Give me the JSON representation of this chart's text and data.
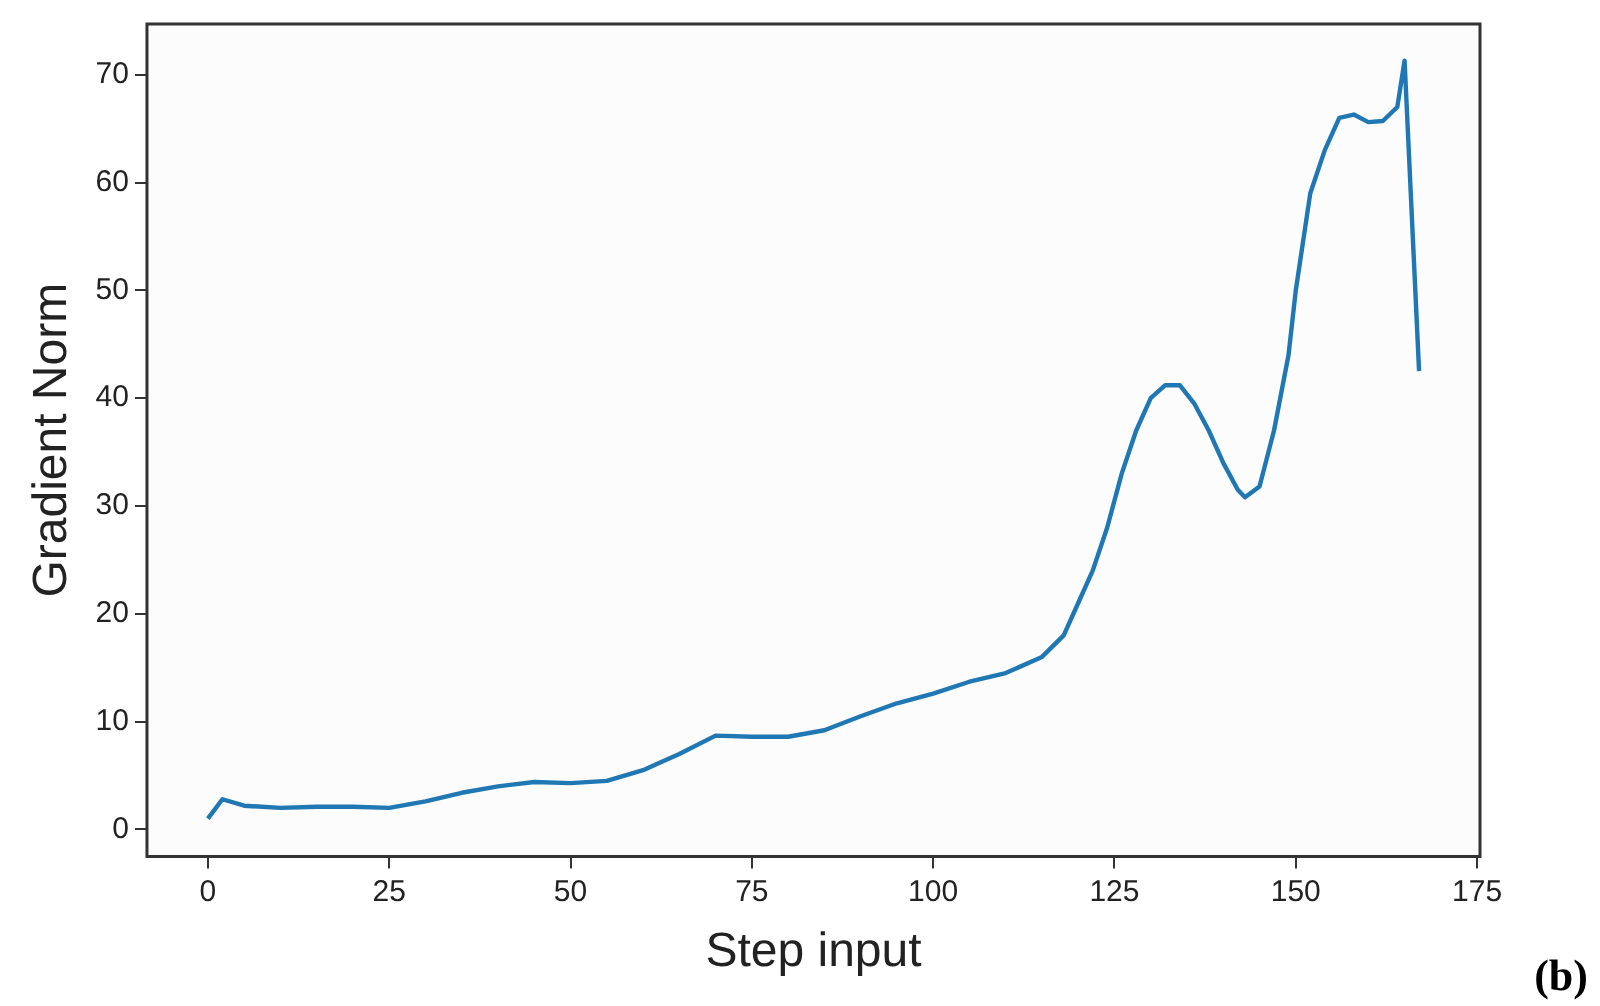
{
  "chart_data": {
    "type": "line",
    "xlabel": "Step input",
    "ylabel": "Gradient Norm",
    "annotations": [
      "(b)"
    ],
    "x": [
      0,
      2,
      5,
      10,
      15,
      20,
      25,
      30,
      35,
      40,
      45,
      50,
      55,
      60,
      65,
      70,
      75,
      80,
      85,
      90,
      95,
      100,
      105,
      110,
      115,
      118,
      120,
      122,
      124,
      126,
      128,
      130,
      132,
      134,
      136,
      138,
      140,
      142,
      143,
      145,
      147,
      149,
      150,
      152,
      154,
      156,
      158,
      160,
      162,
      164,
      165,
      167
    ],
    "series": [
      {
        "color": "#1f77b4",
        "values": [
          1,
          2.8,
          2.2,
          2.0,
          2.1,
          2.1,
          2.0,
          2.6,
          3.4,
          4.0,
          4.4,
          4.3,
          4.5,
          5.5,
          7.0,
          8.7,
          8.6,
          8.6,
          9.2,
          10.5,
          11.7,
          12.6,
          13.7,
          14.5,
          16,
          18,
          21,
          24,
          28,
          33,
          37,
          40,
          41.2,
          41.2,
          39.5,
          37,
          34,
          31.5,
          30.8,
          31.8,
          37,
          44,
          50,
          59,
          63,
          66,
          66.3,
          65.6,
          65.7,
          67,
          71.3,
          42.5
        ]
      }
    ],
    "xlim": [
      -8.4,
      175.4
    ],
    "ylim": [
      -2.5,
      74.7
    ],
    "xticks": [
      0,
      25,
      50,
      75,
      100,
      125,
      150,
      175
    ],
    "yticks": [
      0,
      10,
      20,
      30,
      40,
      50,
      60,
      70
    ],
    "grid": false,
    "legend": false,
    "marker": "none",
    "line_style": "solid"
  }
}
